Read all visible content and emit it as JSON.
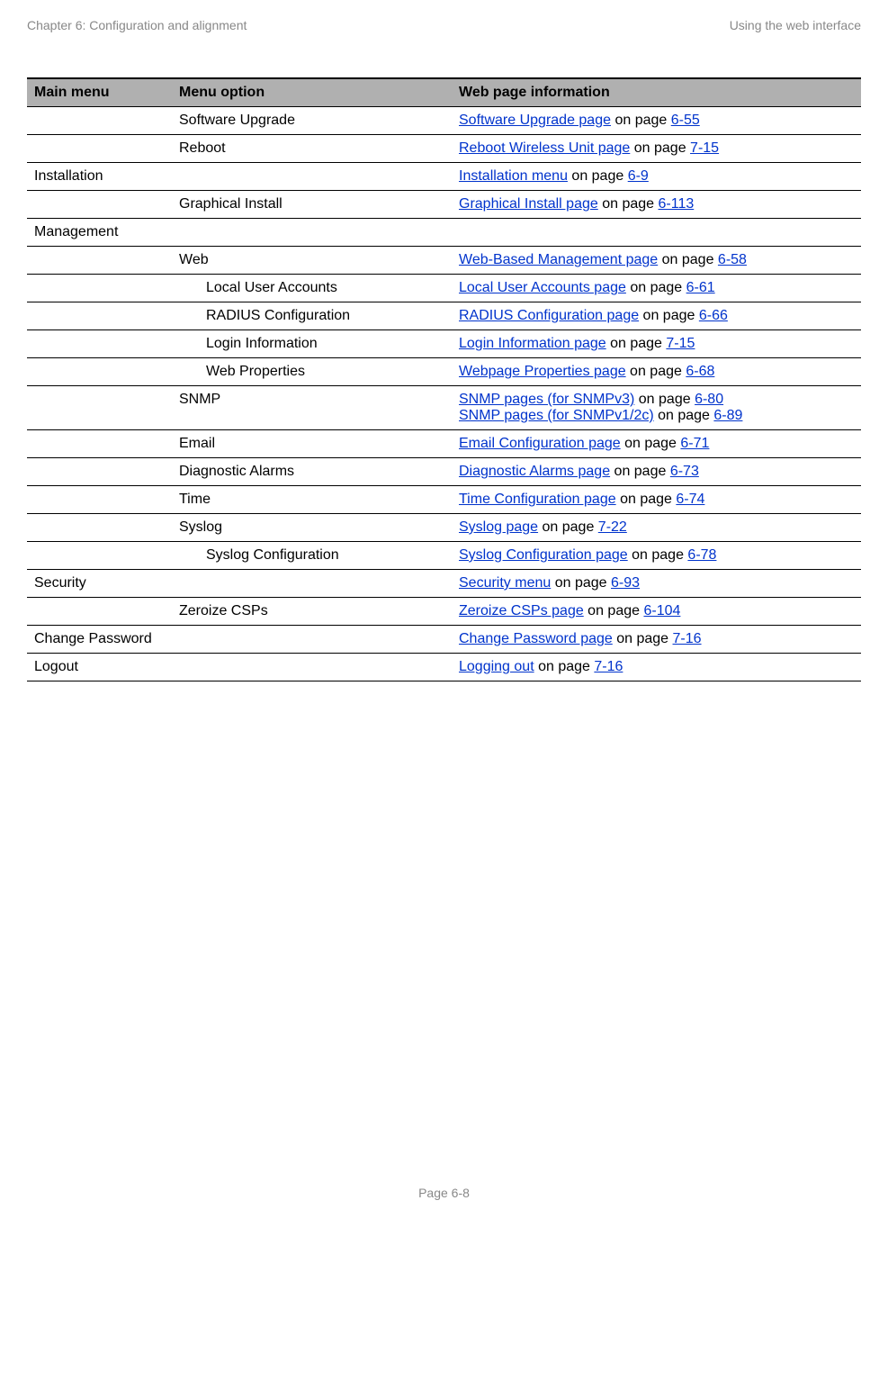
{
  "header": {
    "left": "Chapter 6:  Configuration and alignment",
    "right": "Using the web interface"
  },
  "table": {
    "headers": {
      "main_menu": "Main menu",
      "menu_option": "Menu option",
      "web_page_info": "Web page information"
    },
    "rows": [
      {
        "main": "",
        "option": "Software Upgrade",
        "indent": 1,
        "info": [
          {
            "link": "Software Upgrade page",
            "text": " on page ",
            "page": "6-55"
          }
        ]
      },
      {
        "main": "",
        "option": "Reboot",
        "indent": 1,
        "info": [
          {
            "link": "Reboot Wireless Unit page",
            "text": " on page ",
            "page": "7-15"
          }
        ]
      },
      {
        "main": "Installation",
        "option": "",
        "indent": 1,
        "info": [
          {
            "link": "Installation menu",
            "text": " on page ",
            "page": "6-9"
          }
        ]
      },
      {
        "main": "",
        "option": "Graphical Install",
        "indent": 1,
        "info": [
          {
            "link": "Graphical Install page",
            "text": " on page ",
            "page": "6-113"
          }
        ]
      },
      {
        "main": "Management",
        "option": "",
        "indent": 1,
        "info": []
      },
      {
        "main": "",
        "option": "Web",
        "indent": 1,
        "info": [
          {
            "link": "Web-Based Management page",
            "text": " on page ",
            "page": "6-58"
          }
        ]
      },
      {
        "main": "",
        "option": "Local User Accounts",
        "indent": 2,
        "info": [
          {
            "link": "Local User Accounts page",
            "text": " on page ",
            "page": "6-61"
          }
        ]
      },
      {
        "main": "",
        "option": "RADIUS Configuration",
        "indent": 2,
        "info": [
          {
            "link": "RADIUS Configuration page",
            "text": " on page ",
            "page": "6-66"
          }
        ]
      },
      {
        "main": "",
        "option": "Login Information",
        "indent": 2,
        "info": [
          {
            "link": "Login Information page",
            "text": " on page ",
            "page": "7-15"
          }
        ]
      },
      {
        "main": "",
        "option": "Web Properties",
        "indent": 2,
        "info": [
          {
            "link": "Webpage Properties page",
            "text": " on page ",
            "page": "6-68"
          }
        ]
      },
      {
        "main": "",
        "option": "SNMP",
        "indent": 1,
        "info": [
          {
            "link": "SNMP pages (for SNMPv3)",
            "text": " on page ",
            "page": "6-80"
          },
          {
            "link": "SNMP pages (for SNMPv1/2c)",
            "text": " on page ",
            "page": "6-89"
          }
        ]
      },
      {
        "main": "",
        "option": "Email",
        "indent": 1,
        "info": [
          {
            "link": "Email Configuration page",
            "text": " on page ",
            "page": "6-71"
          }
        ]
      },
      {
        "main": "",
        "option": "Diagnostic Alarms",
        "indent": 1,
        "info": [
          {
            "link": "Diagnostic Alarms page",
            "text": " on page ",
            "page": "6-73"
          }
        ]
      },
      {
        "main": "",
        "option": "Time",
        "indent": 1,
        "info": [
          {
            "link": "Time Configuration page",
            "text": " on page ",
            "page": "6-74"
          }
        ]
      },
      {
        "main": "",
        "option": "Syslog",
        "indent": 1,
        "info": [
          {
            "link": "Syslog page",
            "text": " on page ",
            "page": "7-22"
          }
        ]
      },
      {
        "main": "",
        "option": "Syslog Configuration",
        "indent": 2,
        "info": [
          {
            "link": "Syslog Configuration page",
            "text": " on page ",
            "page": "6-78"
          }
        ]
      },
      {
        "main": "Security",
        "option": "",
        "indent": 1,
        "info": [
          {
            "link": "Security menu",
            "text": " on page ",
            "page": "6-93"
          }
        ]
      },
      {
        "main": "",
        "option": "Zeroize CSPs",
        "indent": 1,
        "info": [
          {
            "link": "Zeroize CSPs page",
            "text": " on page ",
            "page": "6-104"
          }
        ]
      },
      {
        "main": "Change Password",
        "option": "",
        "indent": 1,
        "info": [
          {
            "link": "Change Password page",
            "text": " on page ",
            "page": "7-16"
          }
        ]
      },
      {
        "main": "Logout",
        "option": "",
        "indent": 1,
        "info": [
          {
            "link": "Logging out",
            "text": " on page ",
            "page": "7-16"
          }
        ]
      }
    ]
  },
  "footer": {
    "page_label": "Page 6-8"
  },
  "colors": {
    "header_text": "#888888",
    "link_color": "#0033cc",
    "table_header_bg": "#b0b0b0",
    "border_color": "#000000",
    "body_text": "#000000"
  }
}
